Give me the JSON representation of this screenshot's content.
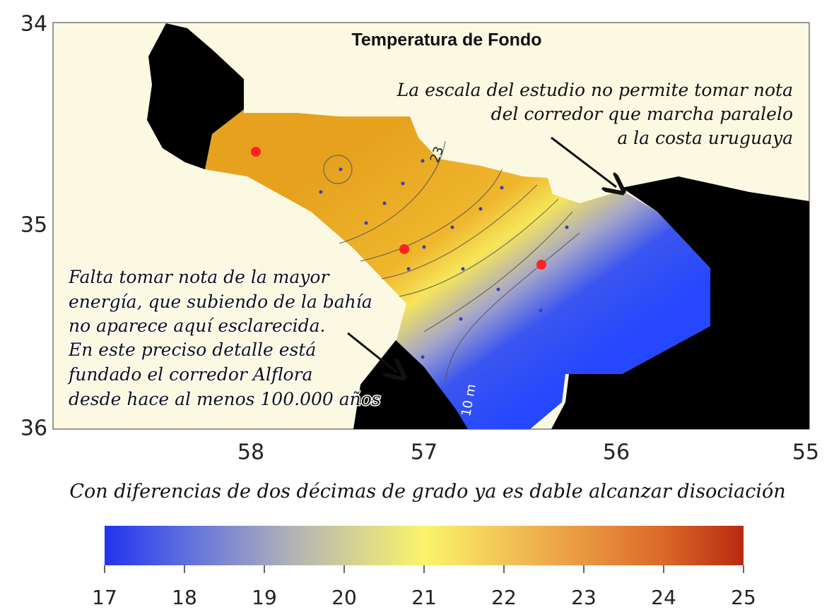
{
  "map": {
    "title": "Temperatura de Fondo",
    "lat_labels": [
      "34",
      "35",
      "36"
    ],
    "lon_labels": [
      "58",
      "57",
      "56",
      "55"
    ],
    "contour_labels": [
      "23",
      "10 m"
    ]
  },
  "annotations": {
    "right": [
      "La escala del estudio no permite tomar nota",
      "del corredor que marcha paralelo",
      "a la costa uruguaya"
    ],
    "left": [
      "Falta tomar nota de la mayor",
      "energía, que subiendo de la bahía",
      "no aparece aquí esclarecida.",
      "En este preciso detalle está",
      "fundado el corredor Alflora",
      "desde hace al menos 100.000 años"
    ]
  },
  "caption": "Con diferencias de dos décimas de grado ya es dable alcanzar disociación",
  "colorbar": {
    "ticks": [
      17,
      18,
      19,
      20,
      21,
      22,
      23,
      24,
      25
    ]
  }
}
